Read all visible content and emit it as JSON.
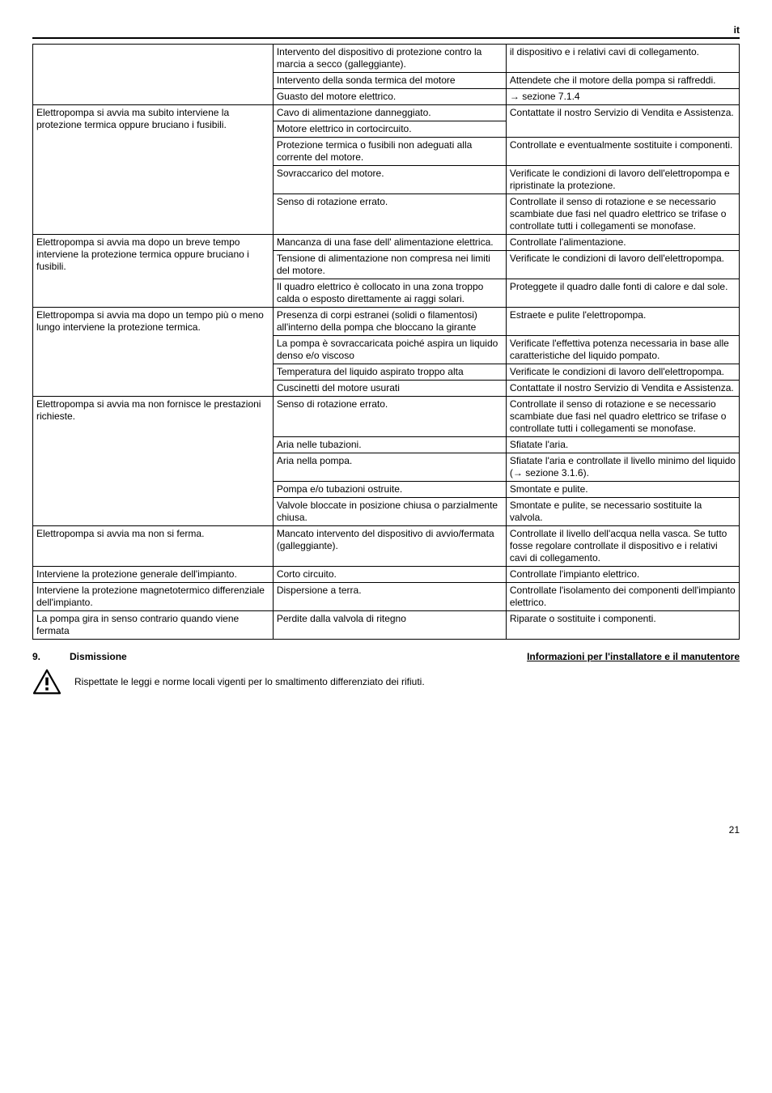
{
  "langMarker": "it",
  "colPercents": [
    34,
    33,
    33
  ],
  "table": [
    {
      "col1": "",
      "col1_rowspan": 3,
      "sub": [
        {
          "col2": "Intervento del dispositivo di protezione contro la marcia a secco (galleggiante).",
          "col3": "il dispositivo e i relativi cavi di collegamento."
        },
        {
          "col2": "Intervento della sonda termica del motore",
          "col3": "Attendete che il motore della pompa si raffreddi."
        },
        {
          "col2": "Guasto del motore elettrico.",
          "col3": "→ sezione 7.1.4"
        }
      ]
    },
    {
      "col1": "Elettropompa si avvia ma subito interviene la protezione termica oppure bruciano i fusibili.",
      "col1_rowspan": 5,
      "sub": [
        {
          "col2": "Cavo di alimentazione danneggiato.",
          "col3": "Contattate il nostro Servizio di Vendita e Assistenza.",
          "col3_rowspan": 1
        },
        {
          "col2": "Motore elettrico in cortocircuito.",
          "col3": "Assistenza.",
          "merge_up_col3": true
        },
        {
          "col2": "Protezione termica o fusibili non adeguati alla corrente del motore.",
          "col3": "Controllate e eventualmente sostituite i componenti."
        },
        {
          "col2": "Sovraccarico del motore.",
          "col3": "Verificate le condizioni di lavoro dell'elettropompa e ripristinate la protezione."
        },
        {
          "col2": "Senso di rotazione errato.",
          "col3": "Controllate il senso di rotazione e se necessario scambiate due fasi nel quadro elettrico se trifase o controllate tutti i collegamenti se monofase."
        }
      ]
    },
    {
      "col1": "Elettropompa si avvia ma dopo un breve tempo interviene la protezione termica oppure bruciano i fusibili.",
      "col1_rowspan": 3,
      "sub": [
        {
          "col2": "Mancanza di una fase dell' alimentazione elettrica.",
          "col3": "Controllate l'alimentazione."
        },
        {
          "col2": "Tensione di alimentazione non compresa nei limiti del motore.",
          "col3": "Verificate le condizioni di lavoro dell'elettropompa."
        },
        {
          "col2": "Il quadro elettrico è collocato in una zona troppo calda o esposto direttamente ai raggi solari.",
          "col3": "Proteggete il quadro dalle fonti di calore e dal sole."
        }
      ]
    },
    {
      "col1": "Elettropompa si avvia ma dopo un tempo più o meno lungo interviene la protezione termica.",
      "col1_rowspan": 4,
      "sub": [
        {
          "col2": "Presenza di corpi estranei (solidi o filamentosi) all'interno della pompa che bloccano la girante",
          "col3": "Estraete e pulite l'elettropompa."
        },
        {
          "col2": "La pompa è sovraccaricata poiché aspira un liquido denso e/o viscoso",
          "col3": "Verificate l'effettiva potenza necessaria in base alle caratteristiche del liquido pompato."
        },
        {
          "col2": "Temperatura del liquido aspirato troppo alta",
          "col3": "Verificate le condizioni di lavoro dell'elettropompa."
        },
        {
          "col2": "Cuscinetti del motore usurati",
          "col3": "Contattate il nostro Servizio di Vendita e Assistenza."
        }
      ]
    },
    {
      "col1": "Elettropompa si avvia ma non fornisce le prestazioni richieste.",
      "col1_rowspan": 5,
      "sub": [
        {
          "col2": "Senso di rotazione errato.",
          "col3": "Controllate il senso di rotazione e se necessario scambiate due fasi nel quadro elettrico se trifase o controllate tutti i collegamenti se monofase."
        },
        {
          "col2": "Aria nelle tubazioni.",
          "col3": "Sfiatate l'aria."
        },
        {
          "col2": "Aria nella pompa.",
          "col3": "Sfiatate l'aria e controllate il livello minimo del liquido (→ sezione 3.1.6)."
        },
        {
          "col2": "Pompa e/o tubazioni ostruite.",
          "col3": "Smontate e pulite."
        },
        {
          "col2": "Valvole bloccate in posizione chiusa o parzialmente chiusa.",
          "col3": "Smontate e pulite, se necessario sostituite la valvola."
        }
      ]
    },
    {
      "col1": "Elettropompa si avvia ma non si ferma.",
      "col1_rowspan": 1,
      "sub": [
        {
          "col2": "Mancato intervento del dispositivo di avvio/fermata (galleggiante).",
          "col3": "Controllate il livello dell'acqua nella vasca. Se tutto fosse regolare controllate il dispositivo e i relativi cavi di collegamento."
        }
      ]
    },
    {
      "col1": "Interviene la protezione generale dell'impianto.",
      "col1_rowspan": 1,
      "sub": [
        {
          "col2": "Corto circuito.",
          "col3": "Controllate l'impianto elettrico."
        }
      ]
    },
    {
      "col1": "Interviene la protezione magnetotermico differenziale dell'impianto.",
      "col1_rowspan": 1,
      "sub": [
        {
          "col2": "Dispersione a terra.",
          "col3": "Controllate l'isolamento dei componenti dell'impianto elettrico."
        }
      ]
    },
    {
      "col1": "La pompa gira in senso contrario quando viene fermata",
      "col1_rowspan": 1,
      "sub": [
        {
          "col2": "Perdite dalla valvola di ritegno",
          "col3": "Riparate o sostituite i componenti."
        }
      ]
    }
  ],
  "section9": {
    "num": "9.",
    "title": "Dismissione",
    "right": "Informazioni per l'installatore e il manutentore",
    "body": "Rispettate le leggi e norme locali vigenti per lo smaltimento differenziato dei rifiuti."
  },
  "pageNum": "21"
}
